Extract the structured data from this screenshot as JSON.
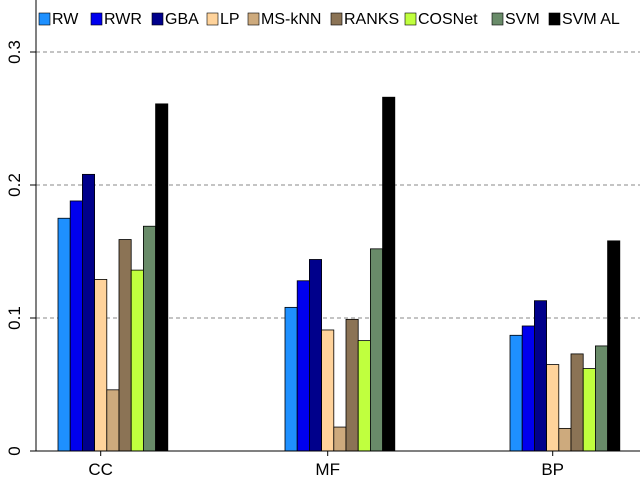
{
  "chart_data": {
    "type": "bar",
    "categories": [
      "CC",
      "MF",
      "BP"
    ],
    "series": [
      {
        "name": "RW",
        "color": "#1E90FF",
        "values": [
          0.175,
          0.108,
          0.087
        ]
      },
      {
        "name": "RWR",
        "color": "#0000EE",
        "values": [
          0.188,
          0.128,
          0.094
        ]
      },
      {
        "name": "GBA",
        "color": "#00008B",
        "values": [
          0.208,
          0.144,
          0.113
        ]
      },
      {
        "name": "LP",
        "color": "#FFD39B",
        "values": [
          0.129,
          0.091,
          0.065
        ]
      },
      {
        "name": "MS-kNN",
        "color": "#CDAA7D",
        "values": [
          0.046,
          0.018,
          0.017
        ]
      },
      {
        "name": "RANKS",
        "color": "#8B7355",
        "values": [
          0.159,
          0.099,
          0.073
        ]
      },
      {
        "name": "COSNet",
        "color": "#C0FF3E",
        "values": [
          0.136,
          0.083,
          0.062
        ]
      },
      {
        "name": "SVM",
        "color": "#698B69",
        "values": [
          0.169,
          0.152,
          0.079
        ]
      },
      {
        "name": "SVM AL",
        "color": "#000000",
        "values": [
          0.261,
          0.266,
          0.158
        ]
      }
    ],
    "yticks": [
      "0",
      "0.1",
      "0.2",
      "0.3"
    ],
    "ylim": [
      0,
      0.33
    ],
    "grid": "horizontal dashed",
    "legend_position": "top"
  }
}
